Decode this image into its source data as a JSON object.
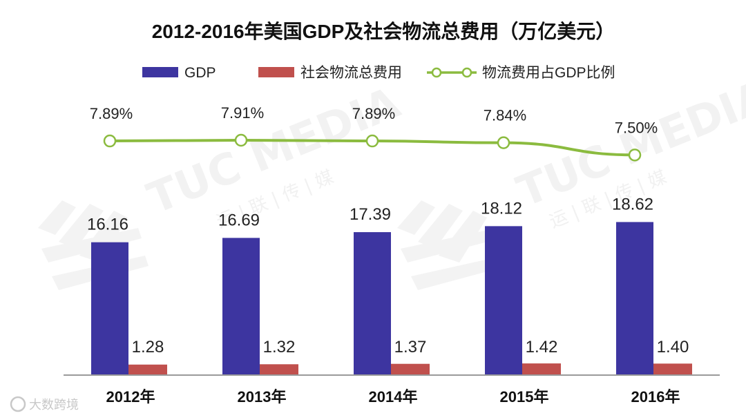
{
  "chart_data": {
    "type": "bar",
    "title": "2012-2016年美国GDP及社会物流总费用（万亿美元）",
    "categories": [
      "2012年",
      "2013年",
      "2014年",
      "2015年",
      "2016年"
    ],
    "series": [
      {
        "name": "GDP",
        "type": "bar",
        "values": [
          16.16,
          16.69,
          17.39,
          18.12,
          18.62
        ],
        "labels": [
          "16.16",
          "16.69",
          "17.39",
          "18.12",
          "18.62"
        ],
        "color": "#3d35a0"
      },
      {
        "name": "社会物流总费用",
        "type": "bar",
        "values": [
          1.28,
          1.32,
          1.37,
          1.42,
          1.4
        ],
        "labels": [
          "1.28",
          "1.32",
          "1.37",
          "1.42",
          "1.40"
        ],
        "color": "#c0504d"
      },
      {
        "name": "物流费用占GDP比例",
        "type": "line",
        "values": [
          7.89,
          7.91,
          7.89,
          7.84,
          7.5
        ],
        "labels": [
          "7.89%",
          "7.91%",
          "7.89%",
          "7.84%",
          "7.50%"
        ],
        "color": "#8bbb3f"
      }
    ],
    "xlabel": "",
    "ylabel": "",
    "grid": false,
    "legend": "top"
  },
  "watermark": {
    "brand": "TUC MEDIA",
    "brand_cn": "运 | 联 | 传 | 媒"
  },
  "source_mark": {
    "text": "大数跨境",
    "icon": "speech-bubble-icon"
  }
}
